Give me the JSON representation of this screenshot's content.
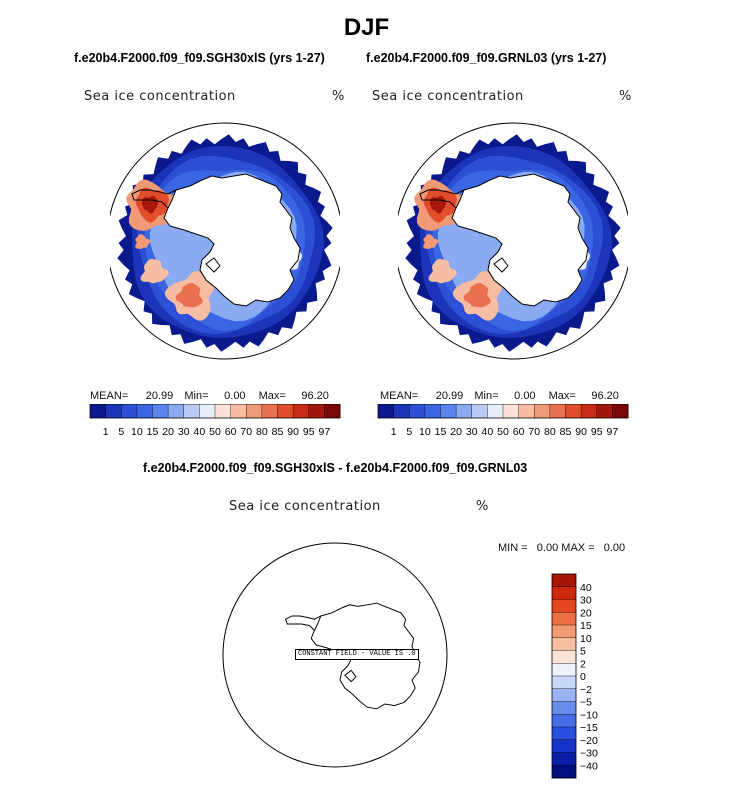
{
  "figure": {
    "title": "DJF"
  },
  "panels": [
    {
      "title": "f.e20b4.F2000.f09_f09.SGH30xlS (yrs 1-27)",
      "variable": "Sea ice concentration",
      "units": "%",
      "stats": {
        "mean_label": "MEAN=",
        "mean": "20.99",
        "min_label": "Min=",
        "min": "0.00",
        "max_label": "Max=",
        "max": "96.20"
      }
    },
    {
      "title": "f.e20b4.F2000.f09_f09.GRNL03 (yrs 1-27)",
      "variable": "Sea ice concentration",
      "units": "%",
      "stats": {
        "mean_label": "MEAN=",
        "mean": "20.99",
        "min_label": "Min=",
        "min": "0.00",
        "max_label": "Max=",
        "max": "96.20"
      }
    }
  ],
  "diff_panel": {
    "title": "f.e20b4.F2000.f09_f09.SGH30xlS - f.e20b4.F2000.f09_f09.GRNL03",
    "variable": "Sea ice concentration",
    "units": "%",
    "stats_text": "MIN =   0.00 MAX =   0.00",
    "note": "CONSTANT FIELD - VALUE IS .0"
  },
  "chart_data": [
    {
      "type": "heatmap",
      "title": "f.e20b4.F2000.f09_f09.SGH30xlS (yrs 1-27)",
      "variable": "Sea ice concentration",
      "units": "%",
      "projection": "south-polar-stereographic",
      "mean": 20.99,
      "min": 0.0,
      "max": 96.2,
      "colorbar_levels": [
        1,
        5,
        10,
        15,
        20,
        30,
        40,
        50,
        60,
        70,
        80,
        85,
        90,
        95,
        97
      ]
    },
    {
      "type": "heatmap",
      "title": "f.e20b4.F2000.f09_f09.GRNL03 (yrs 1-27)",
      "variable": "Sea ice concentration",
      "units": "%",
      "projection": "south-polar-stereographic",
      "mean": 20.99,
      "min": 0.0,
      "max": 96.2,
      "colorbar_levels": [
        1,
        5,
        10,
        15,
        20,
        30,
        40,
        50,
        60,
        70,
        80,
        85,
        90,
        95,
        97
      ]
    },
    {
      "type": "heatmap",
      "title": "f.e20b4.F2000.f09_f09.SGH30xlS - f.e20b4.F2000.f09_f09.GRNL03",
      "variable": "Sea ice concentration",
      "units": "%",
      "projection": "south-polar-stereographic",
      "min": 0.0,
      "max": 0.0,
      "constant_value": 0.0,
      "colorbar_levels": [
        -40,
        -30,
        -20,
        -15,
        -10,
        -5,
        -2,
        0,
        2,
        5,
        10,
        15,
        20,
        30,
        40
      ]
    }
  ],
  "colors": {
    "scale": [
      "#0a1a8c",
      "#1c34b8",
      "#2c4fd6",
      "#3a66e4",
      "#5a84ec",
      "#8aaaf2",
      "#b8ccf6",
      "#e6eefb",
      "#fbe2d6",
      "#f6bda2",
      "#f09a78",
      "#ea7250",
      "#e04c2c",
      "#c82a16",
      "#a4160c",
      "#7a0806"
    ],
    "diff_scale": [
      "#000e80",
      "#0a1ea8",
      "#1432c8",
      "#2a4ede",
      "#466ce6",
      "#6a8cee",
      "#98b2f4",
      "#c8d8f8",
      "#eef3fc",
      "#fbe4d6",
      "#f8c0a2",
      "#f29a74",
      "#ec7046",
      "#e4461e",
      "#cc2a0a",
      "#a81406",
      "#840404"
    ],
    "land": "#ffffff",
    "coast": "#000000"
  }
}
